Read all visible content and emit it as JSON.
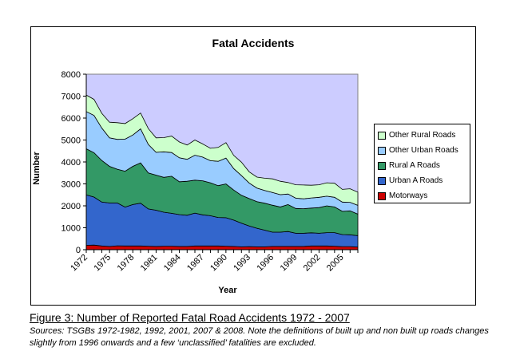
{
  "chart_data": {
    "type": "area",
    "stacked": true,
    "title": "Fatal Accidents",
    "xlabel": "Year",
    "ylabel": "Number",
    "ylim": [
      0,
      8000
    ],
    "yticks": [
      0,
      1000,
      2000,
      3000,
      4000,
      5000,
      6000,
      7000,
      8000
    ],
    "xtick_labels": [
      "1972",
      "1975",
      "1978",
      "1981",
      "1984",
      "1987",
      "1990",
      "1993",
      "1996",
      "1999",
      "2002",
      "2005"
    ],
    "grid": false,
    "plot_background": "#ccccff",
    "legend_position": "right",
    "x": [
      1972,
      1973,
      1974,
      1975,
      1976,
      1977,
      1978,
      1979,
      1980,
      1981,
      1982,
      1983,
      1984,
      1985,
      1986,
      1987,
      1988,
      1989,
      1990,
      1991,
      1992,
      1993,
      1994,
      1995,
      1996,
      1997,
      1998,
      1999,
      2000,
      2001,
      2002,
      2003,
      2004,
      2005,
      2006,
      2007
    ],
    "series": [
      {
        "name": "Motorways",
        "color": "#cc0000",
        "values": [
          200,
          210,
          170,
          150,
          180,
          170,
          170,
          170,
          160,
          150,
          160,
          160,
          150,
          150,
          170,
          170,
          170,
          170,
          160,
          150,
          130,
          140,
          130,
          130,
          150,
          150,
          150,
          150,
          150,
          170,
          170,
          170,
          160,
          140,
          140,
          120
        ]
      },
      {
        "name": "Urban A Roads",
        "color": "#3366cc",
        "values": [
          2300,
          2190,
          2000,
          1980,
          1950,
          1770,
          1890,
          1950,
          1700,
          1650,
          1550,
          1500,
          1450,
          1420,
          1500,
          1420,
          1380,
          1300,
          1300,
          1200,
          1080,
          940,
          850,
          760,
          650,
          650,
          680,
          600,
          600,
          600,
          580,
          610,
          620,
          550,
          540,
          520
        ]
      },
      {
        "name": "Rural A Roads",
        "color": "#339966",
        "values": [
          2100,
          2020,
          1900,
          1670,
          1540,
          1640,
          1740,
          1840,
          1640,
          1600,
          1590,
          1690,
          1500,
          1550,
          1500,
          1550,
          1500,
          1450,
          1540,
          1370,
          1270,
          1250,
          1210,
          1230,
          1230,
          1150,
          1230,
          1130,
          1120,
          1130,
          1170,
          1220,
          1170,
          1060,
          1090,
          980
        ]
      },
      {
        "name": "Other Urban Roads",
        "color": "#99ccff",
        "values": [
          1700,
          1700,
          1480,
          1300,
          1360,
          1460,
          1430,
          1550,
          1300,
          1040,
          1160,
          1080,
          1090,
          1000,
          1140,
          1080,
          1010,
          1110,
          1180,
          980,
          900,
          710,
          620,
          580,
          580,
          560,
          480,
          470,
          450,
          460,
          470,
          440,
          440,
          420,
          390,
          400
        ]
      },
      {
        "name": "Other Rural Roads",
        "color": "#ccffcc",
        "values": [
          750,
          730,
          670,
          710,
          760,
          710,
          740,
          720,
          720,
          660,
          650,
          750,
          720,
          650,
          690,
          600,
          560,
          630,
          700,
          600,
          610,
          510,
          500,
          560,
          620,
          610,
          520,
          610,
          630,
          580,
          570,
          610,
          640,
          580,
          620,
          600
        ]
      }
    ]
  },
  "caption": {
    "title": "Figure 3: Number of Reported Fatal Road Accidents 1972 - 2007",
    "sources": "Sources: TSGBs 1972-1982, 1992, 2001, 2007 & 2008. Note the definitions of built up and non built up roads changes slightly from 1996 onwards and a few ‘unclassified’ fatalities are excluded."
  }
}
